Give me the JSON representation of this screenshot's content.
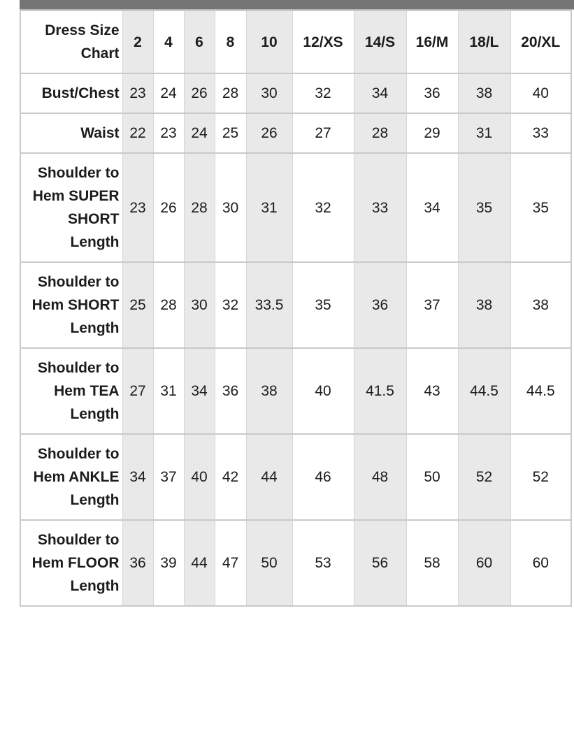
{
  "chart_data": {
    "type": "table",
    "title": "Dress Size Chart",
    "header": {
      "label": "Dress Size Chart",
      "sizes": [
        "2",
        "4",
        "6",
        "8",
        "10",
        "12/XS",
        "14/S",
        "16/M",
        "18/L",
        "20/XL"
      ]
    },
    "rows": [
      {
        "label": "Bust/Chest",
        "values": [
          "23",
          "24",
          "26",
          "28",
          "30",
          "32",
          "34",
          "36",
          "38",
          "40"
        ]
      },
      {
        "label": "Waist",
        "values": [
          "22",
          "23",
          "24",
          "25",
          "26",
          "27",
          "28",
          "29",
          "31",
          "33"
        ]
      },
      {
        "label": "Shoulder to Hem SUPER SHORT Length",
        "values": [
          "23",
          "26",
          "28",
          "30",
          "31",
          "32",
          "33",
          "34",
          "35",
          "35"
        ]
      },
      {
        "label": "Shoulder to Hem SHORT Length",
        "values": [
          "25",
          "28",
          "30",
          "32",
          "33.5",
          "35",
          "36",
          "37",
          "38",
          "38"
        ]
      },
      {
        "label": "Shoulder to Hem TEA Length",
        "values": [
          "27",
          "31",
          "34",
          "36",
          "38",
          "40",
          "41.5",
          "43",
          "44.5",
          "44.5"
        ]
      },
      {
        "label": "Shoulder to Hem ANKLE Length",
        "values": [
          "34",
          "37",
          "40",
          "42",
          "44",
          "46",
          "48",
          "50",
          "52",
          "52"
        ]
      },
      {
        "label": "Shoulder to Hem FLOOR Length",
        "values": [
          "36",
          "39",
          "44",
          "47",
          "50",
          "53",
          "56",
          "58",
          "60",
          "60"
        ]
      }
    ],
    "layout": {
      "striped_size_column_indices": [
        0,
        2,
        4,
        6,
        8
      ],
      "grid": true,
      "colors": {
        "stripe_fill": "#e9e9e9",
        "row_border": "#c9c9c9",
        "cell_border": "#d6d6d6",
        "top_bar": "#757575",
        "text": "#1c1c1c",
        "background": "#ffffff"
      }
    }
  }
}
